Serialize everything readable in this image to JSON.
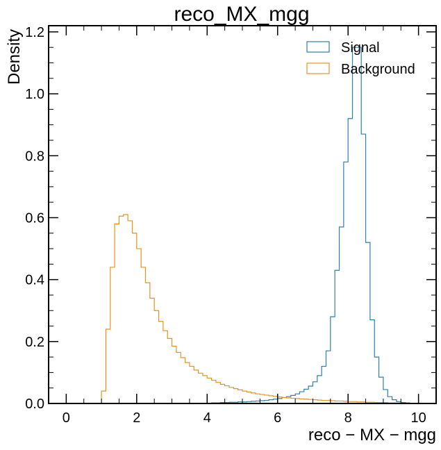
{
  "chart_data": {
    "type": "histogram",
    "title": "reco_MX_mgg",
    "xlabel": "reco − MX − mgg",
    "ylabel": "Density",
    "xlim": [
      -0.5,
      10.5
    ],
    "ylim": [
      0,
      1.22
    ],
    "xticks": [
      "0",
      "2",
      "4",
      "6",
      "8",
      "10"
    ],
    "yticks": [
      "0.0",
      "0.2",
      "0.4",
      "0.6",
      "0.8",
      "1.0",
      "1.2"
    ],
    "legend_position": "top-right",
    "grid": false,
    "bin_start": 0,
    "bin_width": 0.125,
    "series": [
      {
        "name": "Signal",
        "color": "#2f7fa6",
        "values": [
          0,
          0,
          0,
          0,
          0,
          0,
          0,
          0,
          0,
          0,
          0,
          0,
          0,
          0,
          0,
          0,
          0,
          0,
          0,
          0,
          0,
          0,
          0,
          0,
          0,
          0,
          0,
          0,
          0,
          0,
          0,
          0,
          0.001,
          0.002,
          0.002,
          0.003,
          0.003,
          0.004,
          0.004,
          0.005,
          0.005,
          0.006,
          0.007,
          0.008,
          0.009,
          0.01,
          0.012,
          0.014,
          0.016,
          0.019,
          0.022,
          0.026,
          0.031,
          0.038,
          0.046,
          0.056,
          0.07,
          0.09,
          0.12,
          0.17,
          0.28,
          0.43,
          0.57,
          0.78,
          0.92,
          1.15,
          1.15,
          0.87,
          0.52,
          0.27,
          0.15,
          0.085,
          0.045,
          0.022,
          0.012,
          0.006,
          0.003,
          0.002,
          0.001,
          0
        ]
      },
      {
        "name": "Background",
        "color": "#e3941e",
        "values": [
          0,
          0,
          0,
          0,
          0,
          0,
          0,
          0,
          0.04,
          0.24,
          0.44,
          0.58,
          0.605,
          0.61,
          0.59,
          0.55,
          0.5,
          0.44,
          0.39,
          0.34,
          0.3,
          0.265,
          0.235,
          0.21,
          0.185,
          0.165,
          0.148,
          0.132,
          0.12,
          0.108,
          0.098,
          0.09,
          0.082,
          0.075,
          0.068,
          0.062,
          0.057,
          0.052,
          0.048,
          0.044,
          0.04,
          0.037,
          0.034,
          0.031,
          0.029,
          0.027,
          0.025,
          0.023,
          0.021,
          0.019,
          0.018,
          0.017,
          0.016,
          0.015,
          0.014,
          0.013,
          0.012,
          0.011,
          0.01,
          0.01,
          0.009,
          0.008,
          0.008,
          0.007,
          0.006,
          0.006,
          0.005,
          0.005,
          0.004,
          0.004,
          0.003,
          0.003,
          0.003,
          0.002,
          0.002,
          0.002,
          0.001,
          0.001,
          0.001,
          0
        ]
      }
    ]
  }
}
